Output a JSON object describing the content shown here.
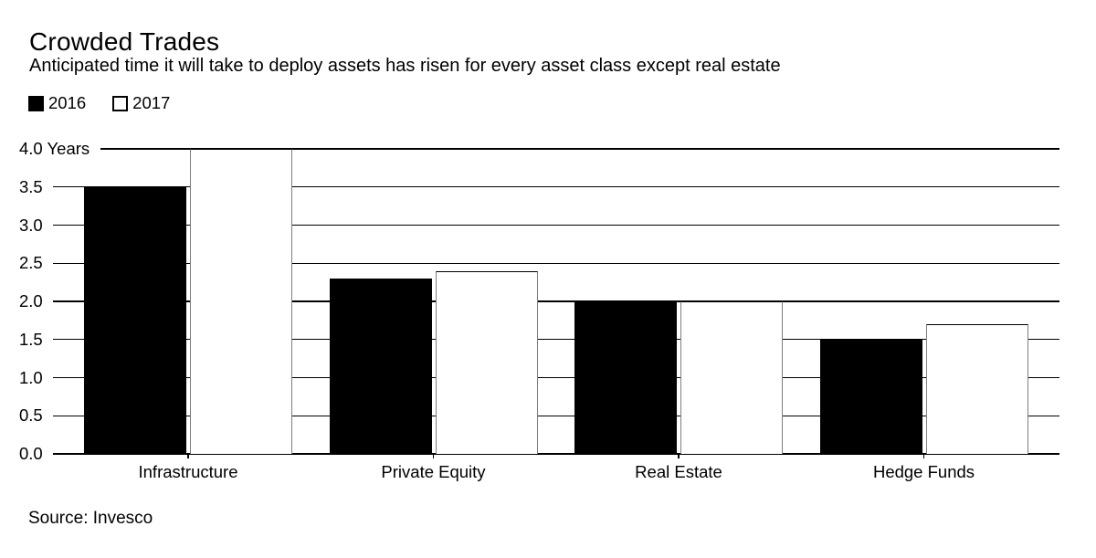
{
  "header": {
    "title": "Crowded Trades",
    "subtitle": "Anticipated time it will take to deploy assets has risen for every asset class except real estate"
  },
  "legend": [
    {
      "label": "2016",
      "swatch_color": "#000000",
      "style": "filled"
    },
    {
      "label": "2017",
      "swatch_color": "#ffffff",
      "style": "outline"
    }
  ],
  "source": "Source: Invesco",
  "colors": {
    "bar_2016": "#000000",
    "bar_2017": "#ffffff",
    "bar_2017_edge": "#7f7f7f",
    "grid": "#000000"
  },
  "chart_data": {
    "type": "bar",
    "title": "Crowded Trades",
    "subtitle": "Anticipated time it will take to deploy assets has risen for every asset class except real estate",
    "categories": [
      "Infrastructure",
      "Private Equity",
      "Real Estate",
      "Hedge Funds"
    ],
    "series": [
      {
        "name": "2016",
        "values": [
          3.5,
          2.3,
          2.0,
          1.5
        ]
      },
      {
        "name": "2017",
        "values": [
          4.0,
          2.4,
          2.0,
          1.7
        ]
      }
    ],
    "xlabel": "",
    "ylabel": "Years",
    "ylim": [
      0,
      4
    ],
    "ytick_step": 0.5,
    "ytick_labels": [
      "4.0 Years",
      "3.5",
      "3.0",
      "2.5",
      "2.0",
      "1.5",
      "1.0",
      "0.5",
      "0.0"
    ],
    "grid": "horizontal",
    "legend_position": "top-left",
    "source": "Source: Invesco"
  }
}
